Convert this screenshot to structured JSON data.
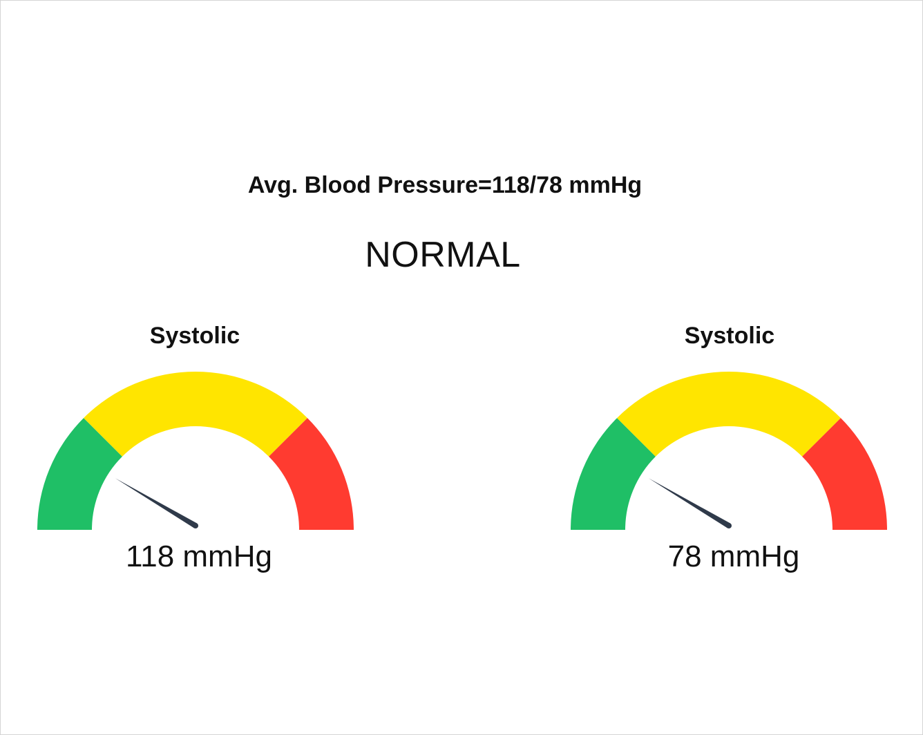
{
  "header": {
    "title": "Avg. Blood Pressure=118/78 mmHg",
    "status": "NORMAL"
  },
  "colors": {
    "green": "#1fbf66",
    "yellow": "#ffe500",
    "red": "#ff3b30",
    "needle": "#2f3a4a"
  },
  "gauges": [
    {
      "title": "Systolic",
      "value_label": "118 mmHg",
      "needle_fraction": 0.17
    },
    {
      "title": "Systolic",
      "value_label": "78 mmHg",
      "needle_fraction": 0.17
    }
  ],
  "chart_data": [
    {
      "type": "gauge",
      "title": "Systolic",
      "value": 118,
      "unit": "mmHg",
      "bands": [
        {
          "color": "green",
          "from": 0,
          "to": 0.25
        },
        {
          "color": "yellow",
          "from": 0.25,
          "to": 0.75
        },
        {
          "color": "red",
          "from": 0.75,
          "to": 1.0
        }
      ],
      "needle_fraction": 0.17
    },
    {
      "type": "gauge",
      "title": "Systolic",
      "value": 78,
      "unit": "mmHg",
      "bands": [
        {
          "color": "green",
          "from": 0,
          "to": 0.25
        },
        {
          "color": "yellow",
          "from": 0.25,
          "to": 0.75
        },
        {
          "color": "red",
          "from": 0.75,
          "to": 1.0
        }
      ],
      "needle_fraction": 0.17
    }
  ]
}
